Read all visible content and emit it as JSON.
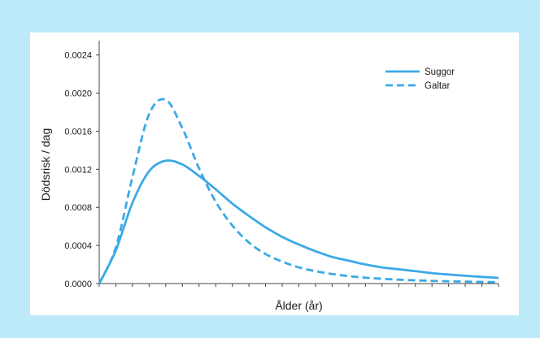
{
  "chart_data": {
    "type": "line",
    "title": "",
    "xlabel": "Ålder (år)",
    "ylabel": "Dödsrisk / dag",
    "ylim": [
      0,
      0.0025
    ],
    "yticks": [
      "0.0000",
      "0.0004",
      "0.0008",
      "0.0012",
      "0.0016",
      "0.0020",
      "0.0024"
    ],
    "ytick_values": [
      0,
      0.0004,
      0.0008,
      0.0012,
      0.0016,
      0.002,
      0.0024
    ],
    "xlim": [
      0,
      24
    ],
    "x_minor_tick_count": 24,
    "x_tick_labels_shown": false,
    "grid": false,
    "legend_position": "top-right",
    "colors": {
      "line": "#3ba9e6",
      "axis": "#444444",
      "background": "#bdeaf9",
      "panel": "#ffffff"
    },
    "series": [
      {
        "name": "Suggor",
        "style": "solid",
        "x": [
          0,
          1,
          2,
          3,
          4,
          5,
          6,
          7,
          8,
          9,
          10,
          11,
          12,
          13,
          14,
          15,
          16,
          17,
          18,
          19,
          20,
          21,
          22,
          23,
          24
        ],
        "values": [
          0.0,
          0.00035,
          0.00085,
          0.00118,
          0.00129,
          0.00125,
          0.00113,
          0.00099,
          0.00084,
          0.00071,
          0.00059,
          0.00049,
          0.00041,
          0.00034,
          0.00028,
          0.00024,
          0.0002,
          0.00017,
          0.00015,
          0.00013,
          0.00011,
          9.5e-05,
          8.2e-05,
          7e-05,
          6e-05
        ]
      },
      {
        "name": "Galtar",
        "style": "dashed",
        "x": [
          0,
          1,
          2,
          3,
          4,
          5,
          6,
          7,
          8,
          9,
          10,
          11,
          12,
          13,
          14,
          15,
          16,
          17,
          18,
          19,
          20,
          21,
          22,
          23,
          24
        ],
        "values": [
          0.0,
          0.00038,
          0.00112,
          0.00178,
          0.00193,
          0.00163,
          0.00121,
          0.00086,
          0.00061,
          0.00043,
          0.00031,
          0.00023,
          0.00017,
          0.00013,
          0.0001,
          7.8e-05,
          6.2e-05,
          5e-05,
          4.1e-05,
          3.4e-05,
          2.8e-05,
          2.4e-05,
          2e-05,
          1.7e-05,
          1.5e-05
        ]
      }
    ]
  }
}
